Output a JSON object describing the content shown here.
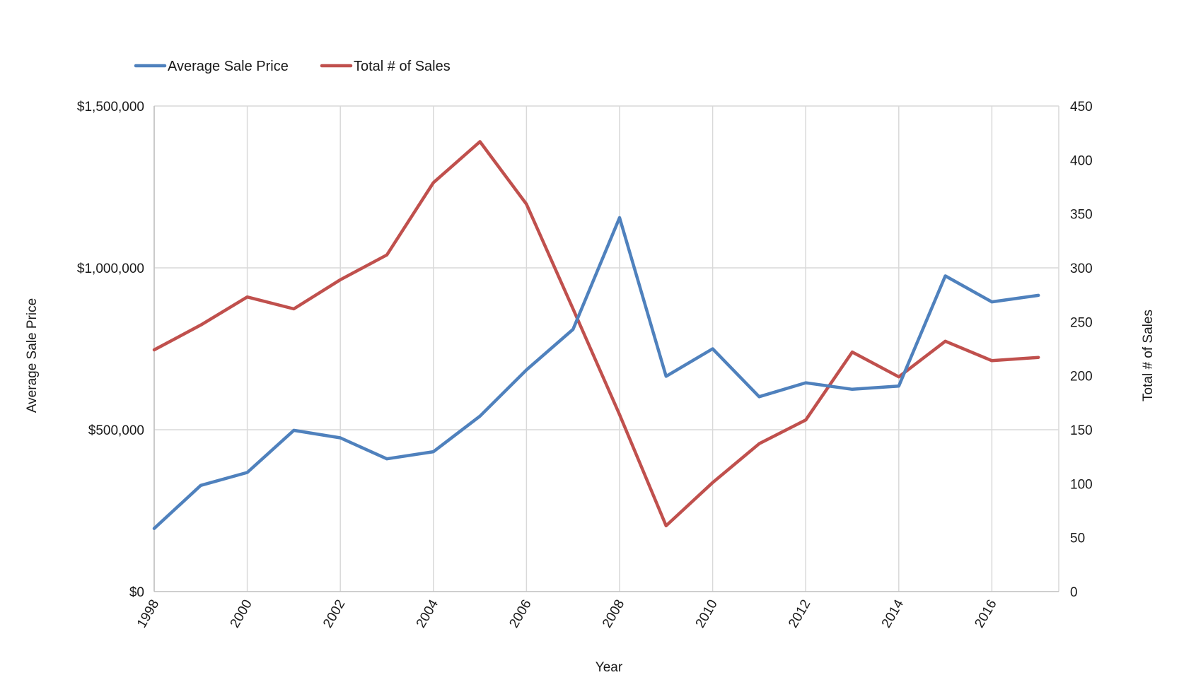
{
  "chart_data": {
    "type": "line",
    "title": "",
    "xlabel": "Year",
    "ylabel_left": "Average Sale Price",
    "ylabel_right": "Total # of Sales",
    "x": [
      1998,
      1999,
      2000,
      2001,
      2002,
      2003,
      2004,
      2005,
      2006,
      2007,
      2008,
      2009,
      2010,
      2011,
      2012,
      2013,
      2014,
      2015,
      2016,
      2017
    ],
    "x_tick_labels": [
      "1998",
      "2000",
      "2002",
      "2004",
      "2006",
      "2008",
      "2010",
      "2012",
      "2014",
      "2016"
    ],
    "xlim": [
      1998,
      2017.5
    ],
    "ylim_left": [
      0,
      1500000
    ],
    "ylim_right": [
      0,
      450
    ],
    "left_tick_labels": [
      "$0",
      "$500,000",
      "$1,000,000",
      "$1,500,000"
    ],
    "left_tick_values": [
      0,
      500000,
      1000000,
      1500000
    ],
    "right_tick_labels": [
      "0",
      "50",
      "100",
      "150",
      "200",
      "250",
      "300",
      "350",
      "400",
      "450"
    ],
    "right_tick_values": [
      0,
      50,
      100,
      150,
      200,
      250,
      300,
      350,
      400,
      450
    ],
    "legend_position": "top-left",
    "grid": true,
    "series": [
      {
        "name": "Average Sale Price",
        "axis": "left",
        "color": "#4f81bd",
        "values": [
          195000,
          328000,
          368000,
          498000,
          475000,
          410000,
          432000,
          542000,
          685000,
          810000,
          1155000,
          665000,
          750000,
          602000,
          645000,
          625000,
          635000,
          975000,
          895000,
          915000
        ]
      },
      {
        "name": "Total # of Sales",
        "axis": "right",
        "color": "#c0504d",
        "values": [
          224,
          247,
          273,
          262,
          289,
          312,
          379,
          417,
          359,
          262,
          164,
          61,
          101,
          137,
          159,
          222,
          199,
          232,
          214,
          217
        ]
      }
    ]
  }
}
